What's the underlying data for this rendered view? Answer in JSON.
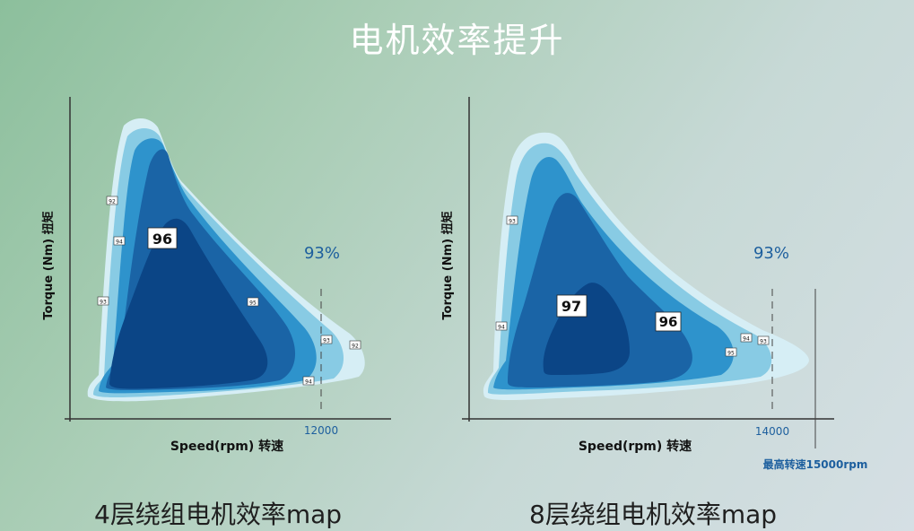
{
  "title": "电机效率提升",
  "chart_data": [
    {
      "type": "heatmap",
      "caption": "4层绕组电机效率map",
      "xlabel": "Speed(rpm) 转速",
      "ylabel": "Torque (Nm) 扭矩",
      "max_speed_marker": "12000",
      "highlight": "93%",
      "contour_levels": [
        "92",
        "93",
        "94",
        "95",
        "96"
      ],
      "peak_label": "96",
      "contour_labels": [
        "92",
        "94",
        "93",
        "95",
        "93",
        "92",
        "94"
      ]
    },
    {
      "type": "heatmap",
      "caption": "8层绕组电机效率map",
      "xlabel": "Speed(rpm) 转速",
      "ylabel": "Torque (Nm) 扭矩",
      "max_speed_marker": "14000",
      "highest_speed_note": "最高转速15000rpm",
      "highlight": "93%",
      "contour_levels": [
        "93",
        "94",
        "95",
        "96",
        "97"
      ],
      "peak_label": "97",
      "second_label": "96",
      "contour_labels": [
        "93",
        "94",
        "95",
        "94",
        "93"
      ]
    }
  ],
  "colors": {
    "level1": "#d6eef5",
    "level2": "#88cbe4",
    "level3": "#2e93cc",
    "level4": "#1a64a6",
    "level5": "#0b4586",
    "highlight": "#1d5f9e"
  }
}
